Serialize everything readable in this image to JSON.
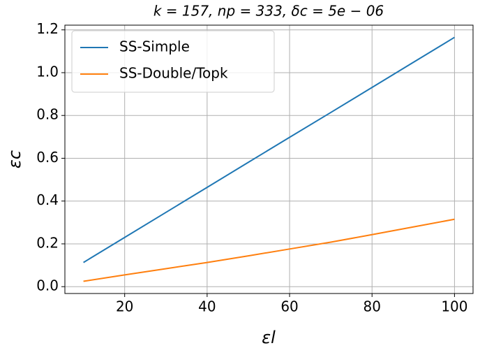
{
  "chart_data": {
    "type": "line",
    "title": "k = 157, np = 333, δc = 5e − 06",
    "x_label": "εl",
    "y_label": "εc",
    "x": [
      10,
      20,
      30,
      40,
      50,
      60,
      70,
      80,
      90,
      100
    ],
    "series": [
      {
        "name": "SS-Simple",
        "color": "#1f77b4",
        "values": [
          0.113,
          0.23,
          0.347,
          0.464,
          0.581,
          0.698,
          0.814,
          0.931,
          1.048,
          1.165
        ]
      },
      {
        "name": "SS-Double/Topk",
        "color": "#ff7f0e",
        "values": [
          0.025,
          0.055,
          0.084,
          0.113,
          0.144,
          0.176,
          0.208,
          0.243,
          0.279,
          0.315
        ]
      }
    ],
    "xlim": [
      5.5,
      104.5
    ],
    "ylim": [
      -0.032,
      1.222
    ],
    "xticks": [
      20,
      40,
      60,
      80,
      100
    ],
    "yticks": [
      {
        "value": 0,
        "label": "0.0"
      },
      0.2,
      0.4,
      0.6,
      0.8,
      {
        "value": 1,
        "label": "1.0"
      },
      1.2
    ],
    "grid": true,
    "legend": "upper left"
  }
}
